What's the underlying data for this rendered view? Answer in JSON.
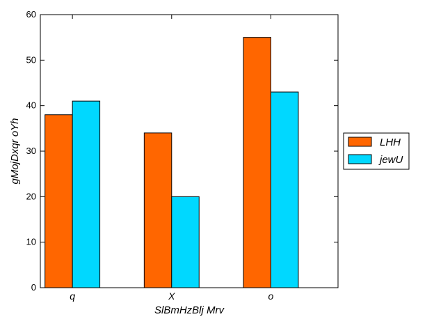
{
  "chart_data": {
    "type": "bar",
    "title": "",
    "xlabel": "SlBmHzBlj Mrv",
    "ylabel": "gMojDxqr oYh",
    "categories": [
      "q",
      "X",
      "o"
    ],
    "series": [
      {
        "name": "LHH",
        "color": "#ff6600",
        "values": [
          38,
          34,
          55
        ]
      },
      {
        "name": "jewU",
        "color": "#00d8ff",
        "values": [
          41,
          20,
          43
        ]
      }
    ],
    "ylim": [
      0,
      60
    ],
    "yticks": [
      0,
      10,
      20,
      30,
      40,
      50,
      60
    ],
    "grid": false,
    "legend_position": "right-center-outside"
  }
}
